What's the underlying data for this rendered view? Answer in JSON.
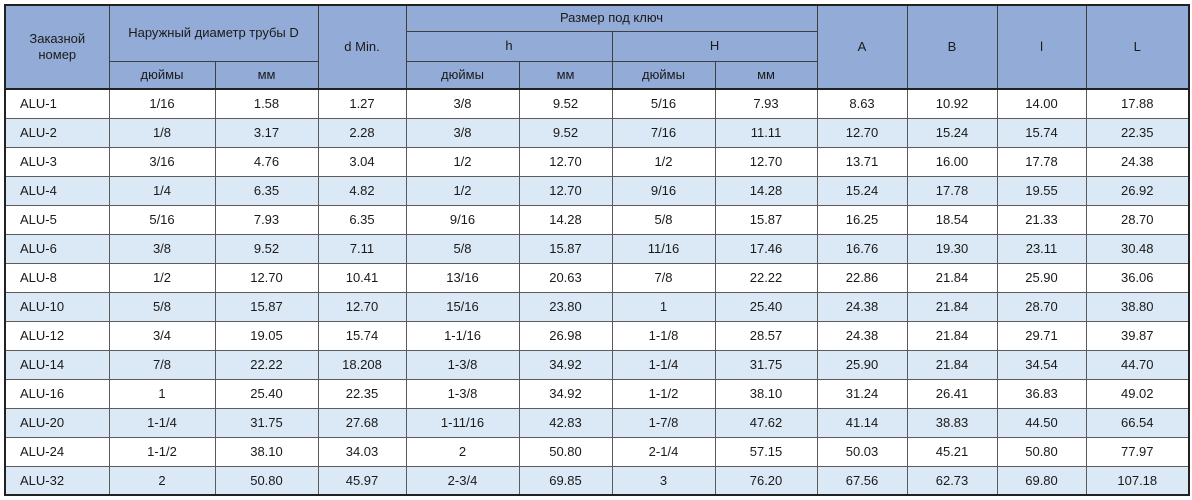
{
  "table": {
    "header": {
      "order_number": "Заказной номер",
      "outer_diameter": "Наружный диаметр трубы D",
      "d_min": "d Min.",
      "wrench_size": "Размер под ключ",
      "h_lower": "h",
      "h_upper": "H",
      "inches_d": "дюймы",
      "mm_d": "мм",
      "inches_h": "дюймы",
      "mm_h": "мм",
      "inches_hh": "дюймы",
      "mm_hh": "мм",
      "col_a": "A",
      "col_b": "B",
      "col_l_lower": "l",
      "col_l_upper": "L"
    },
    "rows": [
      [
        "ALU-1",
        "1/16",
        "1.58",
        "1.27",
        "3/8",
        "9.52",
        "5/16",
        "7.93",
        "8.63",
        "10.92",
        "14.00",
        "17.88"
      ],
      [
        "ALU-2",
        "1/8",
        "3.17",
        "2.28",
        "3/8",
        "9.52",
        "7/16",
        "11.11",
        "12.70",
        "15.24",
        "15.74",
        "22.35"
      ],
      [
        "ALU-3",
        "3/16",
        "4.76",
        "3.04",
        "1/2",
        "12.70",
        "1/2",
        "12.70",
        "13.71",
        "16.00",
        "17.78",
        "24.38"
      ],
      [
        "ALU-4",
        "1/4",
        "6.35",
        "4.82",
        "1/2",
        "12.70",
        "9/16",
        "14.28",
        "15.24",
        "17.78",
        "19.55",
        "26.92"
      ],
      [
        "ALU-5",
        "5/16",
        "7.93",
        "6.35",
        "9/16",
        "14.28",
        "5/8",
        "15.87",
        "16.25",
        "18.54",
        "21.33",
        "28.70"
      ],
      [
        "ALU-6",
        "3/8",
        "9.52",
        "7.11",
        "5/8",
        "15.87",
        "11/16",
        "17.46",
        "16.76",
        "19.30",
        "23.11",
        "30.48"
      ],
      [
        "ALU-8",
        "1/2",
        "12.70",
        "10.41",
        "13/16",
        "20.63",
        "7/8",
        "22.22",
        "22.86",
        "21.84",
        "25.90",
        "36.06"
      ],
      [
        "ALU-10",
        "5/8",
        "15.87",
        "12.70",
        "15/16",
        "23.80",
        "1",
        "25.40",
        "24.38",
        "21.84",
        "28.70",
        "38.80"
      ],
      [
        "ALU-12",
        "3/4",
        "19.05",
        "15.74",
        "1-1/16",
        "26.98",
        "1-1/8",
        "28.57",
        "24.38",
        "21.84",
        "29.71",
        "39.87"
      ],
      [
        "ALU-14",
        "7/8",
        "22.22",
        "18.208",
        "1-3/8",
        "34.92",
        "1-1/4",
        "31.75",
        "25.90",
        "21.84",
        "34.54",
        "44.70"
      ],
      [
        "ALU-16",
        "1",
        "25.40",
        "22.35",
        "1-3/8",
        "34.92",
        "1-1/2",
        "38.10",
        "31.24",
        "26.41",
        "36.83",
        "49.02"
      ],
      [
        "ALU-20",
        "1-1/4",
        "31.75",
        "27.68",
        "1-11/16",
        "42.83",
        "1-7/8",
        "47.62",
        "41.14",
        "38.83",
        "44.50",
        "66.54"
      ],
      [
        "ALU-24",
        "1-1/2",
        "38.10",
        "34.03",
        "2",
        "50.80",
        "2-1/4",
        "57.15",
        "50.03",
        "45.21",
        "50.80",
        "77.97"
      ],
      [
        "ALU-32",
        "2",
        "50.80",
        "45.97",
        "2-3/4",
        "69.85",
        "3",
        "76.20",
        "67.56",
        "62.73",
        "69.80",
        "107.18"
      ]
    ],
    "colors": {
      "header_bg": "#93ACD7",
      "row_alt_bg": "#DBE8F5",
      "row_bg": "#FFFFFF",
      "border_inner": "#5B5B5B",
      "border_outer": "#212121",
      "text": "#1A1A1A"
    }
  }
}
